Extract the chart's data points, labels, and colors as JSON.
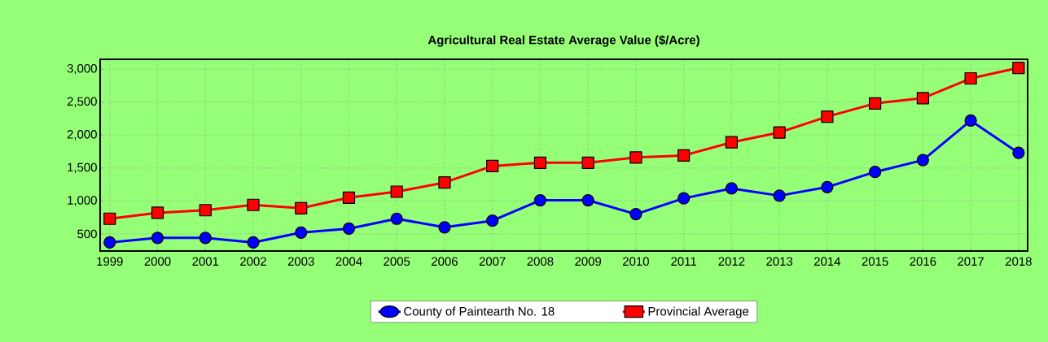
{
  "chart_data": {
    "type": "line",
    "title": "Agricultural Real Estate Average Value ($/Acre)",
    "categories": [
      "1999",
      "2000",
      "2001",
      "2002",
      "2003",
      "2004",
      "2005",
      "2006",
      "2007",
      "2008",
      "2009",
      "2010",
      "2011",
      "2012",
      "2013",
      "2014",
      "2015",
      "2016",
      "2017",
      "2018"
    ],
    "series": [
      {
        "name": "County of Paintearth No. 18",
        "color": "#0000ff",
        "marker": "circle",
        "values": [
          370,
          440,
          440,
          370,
          520,
          580,
          730,
          600,
          700,
          1010,
          1010,
          800,
          1040,
          1190,
          1080,
          1210,
          1440,
          1620,
          2220,
          1730
        ]
      },
      {
        "name": "Provincial Average",
        "color": "#ff0000",
        "marker": "square",
        "values": [
          730,
          820,
          860,
          940,
          890,
          1050,
          1140,
          1280,
          1530,
          1580,
          1580,
          1660,
          1690,
          1890,
          2040,
          2280,
          2480,
          2560,
          2860,
          3020
        ]
      }
    ],
    "ylim": [
      240,
      3150
    ],
    "yticks": [
      {
        "value": 500,
        "label": "500"
      },
      {
        "value": 1000,
        "label": "1,000"
      },
      {
        "value": 1500,
        "label": "1,500"
      },
      {
        "value": 2000,
        "label": "2,000"
      },
      {
        "value": 2500,
        "label": "2,500"
      },
      {
        "value": 3000,
        "label": "3,000"
      }
    ],
    "grid": true,
    "legend": "bottom"
  }
}
